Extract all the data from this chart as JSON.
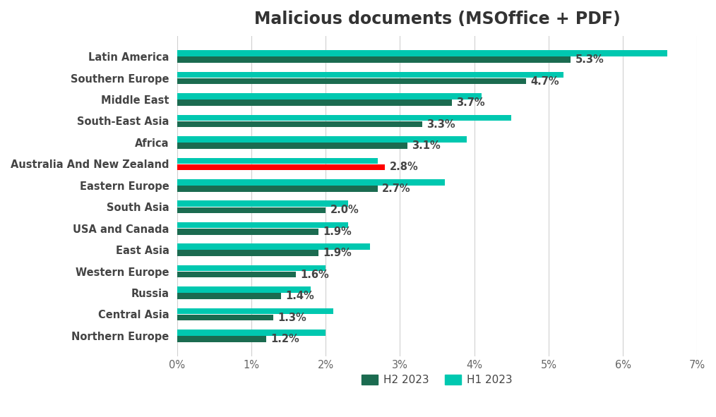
{
  "title": "Malicious documents (MSOffice + PDF)",
  "categories": [
    "Latin America",
    "Southern Europe",
    "Middle East",
    "South-East Asia",
    "Africa",
    "Australia And New Zealand",
    "Eastern Europe",
    "South Asia",
    "USA and Canada",
    "East Asia",
    "Western Europe",
    "Russia",
    "Central Asia",
    "Northern Europe"
  ],
  "h2_2023": [
    5.3,
    4.7,
    3.7,
    3.3,
    3.1,
    2.8,
    2.7,
    2.0,
    1.9,
    1.9,
    1.6,
    1.4,
    1.3,
    1.2
  ],
  "h1_2023": [
    6.6,
    5.2,
    4.1,
    4.5,
    3.9,
    2.7,
    3.6,
    2.3,
    2.3,
    2.6,
    2.0,
    1.8,
    2.1,
    2.0
  ],
  "h2_colors": [
    "#1b6b50",
    "#1b6b50",
    "#1b6b50",
    "#1b6b50",
    "#1b6b50",
    "#ff0000",
    "#1b6b50",
    "#1b6b50",
    "#1b6b50",
    "#1b6b50",
    "#1b6b50",
    "#1b6b50",
    "#1b6b50",
    "#1b6b50"
  ],
  "h1_color": "#00c8b0",
  "h2_default_color": "#1b6b50",
  "background_color": "#ffffff",
  "bar_height": 0.28,
  "bar_gap": 0.02,
  "xlim": [
    0,
    7
  ],
  "xlabel_ticks": [
    0,
    1,
    2,
    3,
    4,
    5,
    6,
    7
  ],
  "xlabel_labels": [
    "0%",
    "1%",
    "2%",
    "3%",
    "4%",
    "5%",
    "6%",
    "7%"
  ],
  "title_fontsize": 17,
  "tick_fontsize": 10.5,
  "label_fontsize": 11,
  "annotation_fontsize": 10.5
}
